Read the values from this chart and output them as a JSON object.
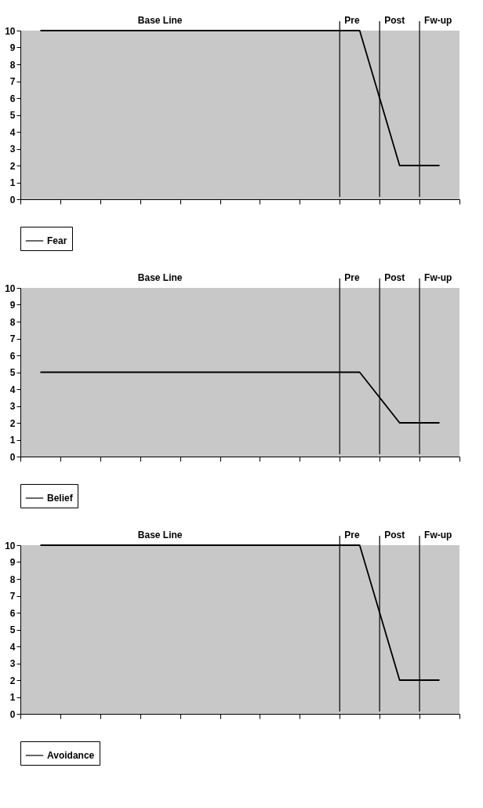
{
  "chart_data": [
    {
      "type": "line",
      "categories": [
        null,
        null,
        null,
        null,
        null,
        null,
        null,
        null,
        null,
        null,
        null
      ],
      "series": [
        {
          "name": "Fear",
          "color": "#000000",
          "values": [
            10,
            10,
            10,
            10,
            10,
            10,
            10,
            10,
            10,
            2,
            2
          ]
        }
      ],
      "ylim": [
        0,
        10
      ],
      "yticks": [
        0,
        1,
        2,
        3,
        4,
        5,
        6,
        7,
        8,
        9,
        10
      ],
      "tick_labels": "y",
      "grid": false,
      "legend": "bottom",
      "marker": "none",
      "line_style": "solid",
      "annotations": [
        "Base Line",
        "Pre",
        "Post",
        "Fw-up"
      ]
    },
    {
      "type": "line",
      "categories": [
        null,
        null,
        null,
        null,
        null,
        null,
        null,
        null,
        null,
        null,
        null
      ],
      "series": [
        {
          "name": "Belief",
          "color": "#000000",
          "values": [
            5,
            5,
            5,
            5,
            5,
            5,
            5,
            5,
            5,
            2,
            2
          ]
        }
      ],
      "ylim": [
        0,
        10
      ],
      "yticks": [
        0,
        1,
        2,
        3,
        4,
        5,
        6,
        7,
        8,
        9,
        10
      ],
      "tick_labels": "y",
      "grid": false,
      "legend": "bottom",
      "marker": "none",
      "line_style": "solid",
      "annotations": [
        "Base Line",
        "Pre",
        "Post",
        "Fw-up"
      ]
    },
    {
      "type": "line",
      "categories": [
        null,
        null,
        null,
        null,
        null,
        null,
        null,
        null,
        null,
        null,
        null
      ],
      "series": [
        {
          "name": "Avoidance",
          "color": "#000000",
          "values": [
            10,
            10,
            10,
            10,
            10,
            10,
            10,
            10,
            10,
            2,
            2
          ]
        }
      ],
      "ylim": [
        0,
        10
      ],
      "yticks": [
        0,
        1,
        2,
        3,
        4,
        5,
        6,
        7,
        8,
        9,
        10
      ],
      "tick_labels": "y",
      "grid": false,
      "legend": "bottom",
      "marker": "none",
      "line_style": "solid",
      "annotations": [
        "Base Line",
        "Pre",
        "Post",
        "Fw-up"
      ]
    }
  ]
}
